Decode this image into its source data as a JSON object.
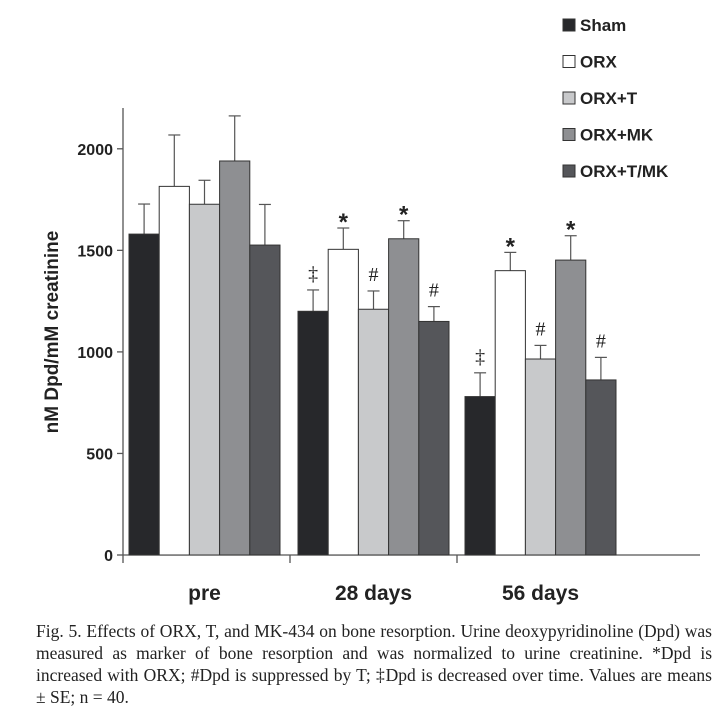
{
  "chart_data": {
    "type": "bar",
    "title": "",
    "xlabel": "",
    "ylabel": "nM Dpd/mM creatinine",
    "ylim": [
      0,
      2200
    ],
    "yticks": [
      0,
      500,
      1000,
      1500,
      2000
    ],
    "categories": [
      "pre",
      "28 days",
      "56 days"
    ],
    "grid": false,
    "legend_placement": "top-right",
    "series": [
      {
        "name": "Sham",
        "color": "#27282b",
        "values": [
          1580,
          1200,
          780
        ],
        "errors": [
          148,
          105,
          117
        ],
        "annotations": [
          "",
          "‡",
          "‡"
        ]
      },
      {
        "name": "ORX",
        "color": "#ffffff",
        "values": [
          1815,
          1505,
          1400
        ],
        "errors": [
          253,
          105,
          90
        ],
        "annotations": [
          "",
          "*",
          "*"
        ]
      },
      {
        "name": "ORX+T",
        "color": "#c8c9cb",
        "values": [
          1727,
          1210,
          965
        ],
        "errors": [
          118,
          90,
          67
        ],
        "annotations": [
          "",
          "#",
          "#"
        ]
      },
      {
        "name": "ORX+MK",
        "color": "#8e8f92",
        "values": [
          1940,
          1557,
          1452
        ],
        "errors": [
          222,
          89,
          120
        ],
        "annotations": [
          "",
          "*",
          "*"
        ]
      },
      {
        "name": "ORX+T/MK",
        "color": "#55565a",
        "values": [
          1526,
          1150,
          862
        ],
        "errors": [
          200,
          73,
          111
        ],
        "annotations": [
          "",
          "#",
          "#"
        ]
      }
    ]
  },
  "caption": "Fig. 5.  Effects of ORX, T, and MK-434 on bone resorption. Urine deoxypyridinoline (Dpd) was measured as marker of bone resorption and was normalized to urine creatinine. *Dpd is increased with ORX; #Dpd is suppressed by T; ‡Dpd is decreased over time. Values are means ± SE; n = 40."
}
